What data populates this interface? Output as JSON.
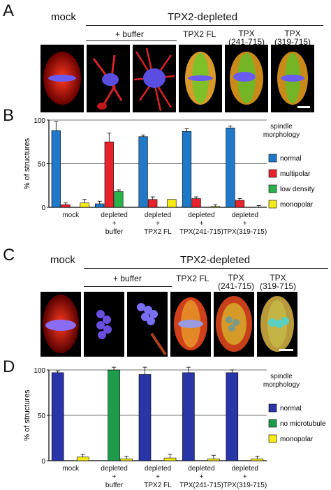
{
  "panel_a": {
    "letter": "A",
    "mock_label": "mock",
    "group_label": "TPX2-depleted",
    "buffer_label": "+ buffer",
    "construct_labels": [
      "TPX2 FL",
      "TPX\n(241-715)",
      "TPX\n(319-715)"
    ]
  },
  "panel_b": {
    "letter": "B"
  },
  "panel_c": {
    "letter": "C",
    "mock_label": "mock",
    "group_label": "TPX2-depleted",
    "buffer_label": "+ buffer",
    "construct_labels": [
      "TPX2 FL",
      "TPX\n(241-715)",
      "TPX\n(319-715)"
    ]
  },
  "panel_d": {
    "letter": "D"
  },
  "colors": {
    "normal_b": "#1f78c8",
    "multipolar": "#e8222a",
    "low_density": "#27b24a",
    "monopolar": "#f5ea14",
    "normal_d": "#2a35a8",
    "no_microtubule": "#1d9a4a"
  },
  "chart_data": [
    {
      "type": "bar",
      "ylabel": "% of structures",
      "ylim": [
        0,
        100
      ],
      "yticks": [
        0,
        50,
        100
      ],
      "grid": true,
      "legend_title": "spindle\nmorphology",
      "categories": [
        "mock",
        "depleted\n+\nbuffer",
        "depleted\n+\nTPX2 FL",
        "depleted\n+\nTPX(241-715)",
        "depleted\n+\nTPX(319-715)"
      ],
      "series": [
        {
          "name": "normal",
          "color": "#1f78c8",
          "values": [
            88,
            4,
            81,
            87,
            91
          ],
          "errors": [
            10,
            3,
            2,
            3,
            2
          ]
        },
        {
          "name": "multipolar",
          "color": "#e8222a",
          "values": [
            3,
            75,
            9,
            10,
            8
          ],
          "errors": [
            2,
            10,
            3,
            2,
            2
          ]
        },
        {
          "name": "low density",
          "color": "#27b24a",
          "values": [
            0,
            18,
            0,
            0,
            0
          ],
          "errors": [
            0,
            2,
            0,
            0,
            0
          ]
        },
        {
          "name": "monopolar",
          "color": "#f5ea14",
          "values": [
            5,
            0,
            9,
            1,
            0
          ],
          "errors": [
            4,
            0,
            0,
            2,
            2
          ]
        }
      ]
    },
    {
      "type": "bar",
      "ylabel": "% of structures",
      "ylim": [
        0,
        100
      ],
      "yticks": [
        0,
        50,
        100
      ],
      "grid": true,
      "legend_title": "spindle\nmorphology",
      "categories": [
        "mock",
        "depleted\n+\nbuffer",
        "depleted\n+\nTPX2 FL",
        "depleted\n+\nTPX(241-715)",
        "depleted\n+\nTPX(319-715)"
      ],
      "series": [
        {
          "name": "normal",
          "color": "#2a35a8",
          "values": [
            97,
            0,
            95,
            97,
            97
          ],
          "errors": [
            2,
            0,
            8,
            6,
            3
          ]
        },
        {
          "name": "no microtubule",
          "color": "#1d9a4a",
          "values": [
            0,
            100,
            0,
            0,
            0
          ],
          "errors": [
            0,
            3,
            0,
            0,
            0
          ]
        },
        {
          "name": "monopolar",
          "color": "#f5ea14",
          "values": [
            4,
            2,
            3,
            2,
            2
          ],
          "errors": [
            3,
            3,
            4,
            4,
            3
          ]
        }
      ]
    }
  ]
}
